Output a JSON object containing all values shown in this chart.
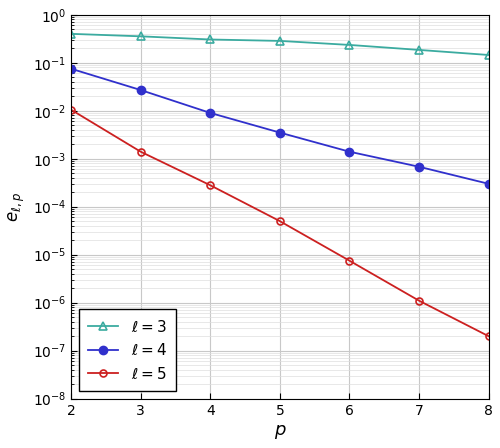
{
  "p_values": [
    2,
    3,
    4,
    5,
    6,
    7,
    8
  ],
  "l3_values": [
    0.4,
    0.355,
    0.305,
    0.285,
    0.235,
    0.185,
    0.145
  ],
  "l4_values": [
    0.075,
    0.027,
    0.009,
    0.0035,
    0.0014,
    0.00068,
    0.0003
  ],
  "l5_values": [
    0.0105,
    0.0014,
    0.00028,
    5e-05,
    7.5e-06,
    1.1e-06,
    2e-07
  ],
  "l3_color": "#3BABA0",
  "l4_color": "#3030CC",
  "l5_color": "#CC2020",
  "xlabel": "$p$",
  "ylabel": "$e_{\\ell,p}$",
  "ylim_min": 1e-08,
  "ylim_max": 1.0,
  "xlim_min": 2,
  "xlim_max": 8,
  "legend_labels": [
    "$\\ell = 3$",
    "$\\ell = 4$",
    "$\\ell = 5$"
  ],
  "major_grid_color": "#c8c8c8",
  "minor_grid_color": "#dedede",
  "background_color": "#ffffff"
}
